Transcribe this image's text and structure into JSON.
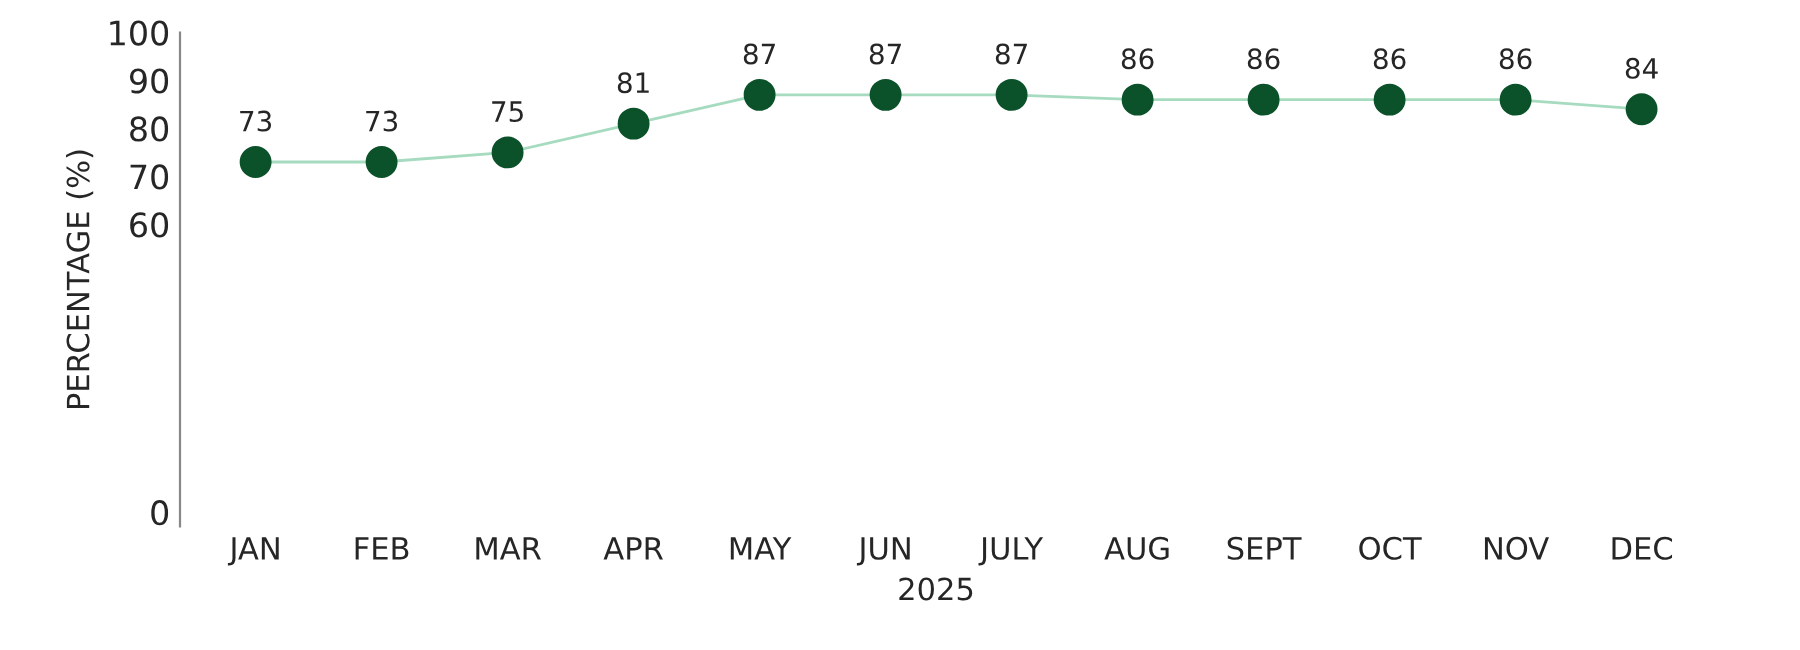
{
  "chart_data": {
    "type": "line",
    "xlabel": "2025",
    "ylabel": "PERCENTAGE (%)",
    "categories": [
      "JAN",
      "FEB",
      "MAR",
      "APR",
      "MAY",
      "JUN",
      "JULY",
      "AUG",
      "SEPT",
      "OCT",
      "NOV",
      "DEC"
    ],
    "series": [
      {
        "color": "#a6dbbf",
        "colors": [
          "#0b5129",
          "#0b5129",
          "#0b5129",
          "#0b5129",
          "#0b5129",
          "#0b5129",
          "#0b5129",
          "#0b5129",
          "#0b5129",
          "#0b5129",
          "#0b5129",
          "#0b5129"
        ],
        "values": [
          73,
          73,
          75,
          81,
          87,
          87,
          87,
          86,
          86,
          86,
          86,
          84
        ]
      }
    ],
    "ylim": [
      -3,
      100
    ],
    "yticks": [
      0,
      60,
      70,
      80,
      90,
      100
    ],
    "data_labels": true,
    "grid": false,
    "marker": "circle",
    "line_style": "solid"
  }
}
